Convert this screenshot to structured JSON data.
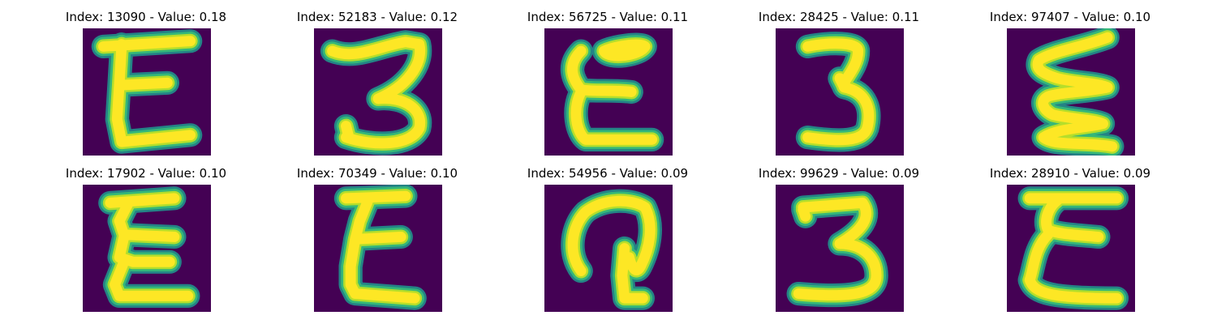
{
  "figure": {
    "colors": {
      "background": "#440154",
      "stroke_core": "#fde725",
      "stroke_mid": "#b5de2b",
      "stroke_edge": "#35b779",
      "stroke_halo": "#21918c"
    },
    "panels": [
      {
        "title": "Index: 13090 - Value: 0.18",
        "index": 13090,
        "value": 0.18,
        "glyph": "E"
      },
      {
        "title": "Index: 52183 - Value: 0.12",
        "index": 52183,
        "value": 0.12,
        "glyph": "3"
      },
      {
        "title": "Index: 56725 - Value: 0.11",
        "index": 56725,
        "value": 0.11,
        "glyph": "E"
      },
      {
        "title": "Index: 28425 - Value: 0.11",
        "index": 28425,
        "value": 0.11,
        "glyph": "3"
      },
      {
        "title": "Index: 97407 - Value: 0.10",
        "index": 97407,
        "value": 0.1,
        "glyph": "E"
      },
      {
        "title": "Index: 17902 - Value: 0.10",
        "index": 17902,
        "value": 0.1,
        "glyph": "E"
      },
      {
        "title": "Index: 70349 - Value: 0.10",
        "index": 70349,
        "value": 0.1,
        "glyph": "E"
      },
      {
        "title": "Index: 54956 - Value: 0.09",
        "index": 54956,
        "value": 0.09,
        "glyph": "3"
      },
      {
        "title": "Index: 99629 - Value: 0.09",
        "index": 99629,
        "value": 0.09,
        "glyph": "3"
      },
      {
        "title": "Index: 28910 - Value: 0.09",
        "index": 28910,
        "value": 0.09,
        "glyph": "E"
      }
    ]
  }
}
